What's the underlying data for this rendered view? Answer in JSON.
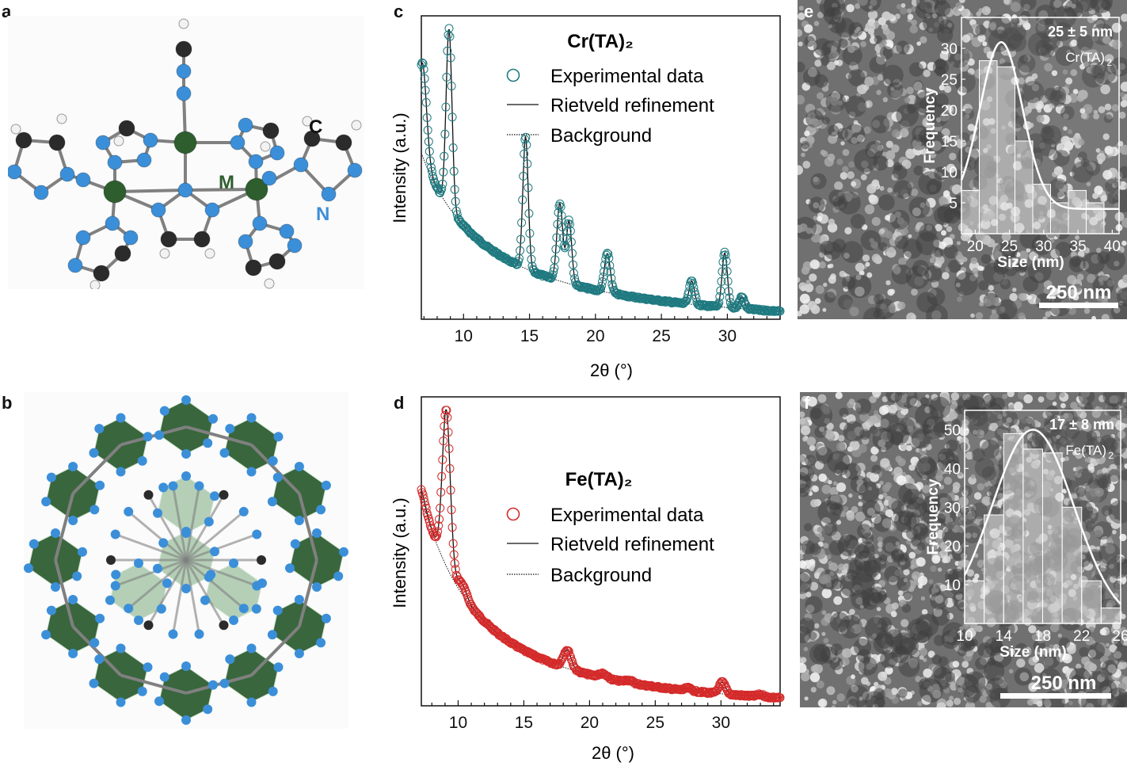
{
  "panels": {
    "a": {
      "label": "a"
    },
    "b": {
      "label": "b"
    },
    "c": {
      "label": "c"
    },
    "d": {
      "label": "d"
    },
    "e": {
      "label": "e"
    },
    "f": {
      "label": "f"
    }
  },
  "structure_a": {
    "atom_labels": {
      "carbon": "C",
      "metal": "M",
      "nitrogen": "N"
    },
    "colors": {
      "metal": "#2e5e2e",
      "nitrogen": "#3b8fd9",
      "carbon": "#2b2b2b",
      "hydrogen": "#f2f2f2",
      "bond": "#808080"
    }
  },
  "structure_b": {
    "colors": {
      "polyhedron": "#2f5f33",
      "polyhedron_light": "#8fb892",
      "nitrogen": "#3b8fd9",
      "bond": "#808080"
    }
  },
  "chart_data": [
    {
      "panel": "c",
      "type": "line",
      "title": "Cr(TA)₂",
      "xlabel": "2θ (°)",
      "ylabel": "Intensity (a.u.)",
      "xlim": [
        6.8,
        34
      ],
      "ylim": [
        0,
        100
      ],
      "xticks": [
        10,
        15,
        20,
        25,
        30
      ],
      "legend_position": "top-right",
      "marker_color": "#1f7a80",
      "background_model": {
        "a": 305,
        "p": 1.35,
        "b": 0
      },
      "peaks": [
        {
          "x": 6.9,
          "h": 12,
          "w": 0.3
        },
        {
          "x": 8.9,
          "h": 23,
          "w": 0.22
        },
        {
          "x": 14.7,
          "h": 17,
          "w": 0.2
        },
        {
          "x": 17.3,
          "h": 10,
          "w": 0.22
        },
        {
          "x": 18.0,
          "h": 8,
          "w": 0.2
        },
        {
          "x": 20.9,
          "h": 5,
          "w": 0.22
        },
        {
          "x": 27.3,
          "h": 3,
          "w": 0.2
        },
        {
          "x": 29.8,
          "h": 7,
          "w": 0.2
        },
        {
          "x": 31.1,
          "h": 1.5,
          "w": 0.2
        }
      ],
      "series": [
        {
          "name": "Experimental data",
          "style": "open-circles"
        },
        {
          "name": "Rietveld refinement",
          "style": "solid-line"
        },
        {
          "name": "Background",
          "style": "dotted-line"
        }
      ]
    },
    {
      "panel": "d",
      "type": "line",
      "title": "Fe(TA)₂",
      "xlabel": "2θ (°)",
      "ylabel": "Intensity (a.u.)",
      "xlim": [
        7.2,
        34.5
      ],
      "ylim": [
        0,
        100
      ],
      "xticks": [
        10,
        15,
        20,
        25,
        30
      ],
      "legend_position": "middle-right",
      "marker_color": "#d42a2a",
      "background_model": {
        "a": 2400,
        "p": 1.7,
        "b": 1.5
      },
      "peaks": [
        {
          "x": 7.3,
          "h": 2,
          "w": 0.3
        },
        {
          "x": 9.1,
          "h": 60,
          "w": 0.3
        },
        {
          "x": 10.3,
          "h": 4,
          "w": 0.35
        },
        {
          "x": 18.3,
          "h": 7,
          "w": 0.3
        },
        {
          "x": 21.0,
          "h": 1.5,
          "w": 0.3
        },
        {
          "x": 23.0,
          "h": 1,
          "w": 0.3
        },
        {
          "x": 27.5,
          "h": 1,
          "w": 0.25
        },
        {
          "x": 30.1,
          "h": 4.5,
          "w": 0.25
        },
        {
          "x": 33.0,
          "h": 0.8,
          "w": 0.25
        }
      ],
      "series": [
        {
          "name": "Experimental data",
          "style": "open-circles"
        },
        {
          "name": "Rietveld refinement",
          "style": "solid-line"
        },
        {
          "name": "Background",
          "style": "dotted-line"
        }
      ]
    },
    {
      "panel": "e",
      "type": "bar",
      "subtype": "histogram",
      "annotation_main": "25 ± 5 nm",
      "annotation_sub": "Cr(TA)",
      "annotation_subscript": "2",
      "xlabel": "Size (nm)",
      "ylabel": "Frequency",
      "xlim": [
        18,
        41
      ],
      "ylim": [
        0,
        35
      ],
      "xticks": [
        20,
        25,
        30,
        35,
        40
      ],
      "yticks": [
        5,
        10,
        15,
        20,
        25,
        30
      ],
      "bin_edges": [
        18,
        20.6,
        23.2,
        25.8,
        28.4,
        31,
        33.6,
        36.2,
        38.8,
        41.4
      ],
      "values": [
        7,
        28,
        27,
        15,
        8,
        5,
        7,
        5,
        0
      ],
      "fit": {
        "type": "gaussian",
        "mean": 23.8,
        "sd": 3.1,
        "amp": 31,
        "offset": 4
      }
    },
    {
      "panel": "f",
      "type": "bar",
      "subtype": "histogram",
      "annotation_main": "17 ± 8 nm",
      "annotation_sub": "Fe(TA)",
      "annotation_subscript": "2",
      "xlabel": "Size (nm)",
      "ylabel": "Frequency",
      "xlim": [
        10,
        26
      ],
      "ylim": [
        0,
        55
      ],
      "xticks": [
        10,
        14,
        18,
        22,
        26
      ],
      "yticks": [
        10,
        20,
        30,
        40,
        50
      ],
      "bin_edges": [
        10,
        12,
        14,
        16,
        18,
        20,
        22,
        24,
        26
      ],
      "values": [
        11,
        28,
        49,
        45,
        44,
        30,
        11,
        4
      ],
      "fit": {
        "type": "gaussian",
        "mean": 17,
        "sd": 4.2,
        "amp": 50,
        "offset": 0
      }
    }
  ],
  "sem": {
    "e": {
      "scalebar": "250 nm"
    },
    "f": {
      "scalebar": "250 nm"
    }
  }
}
